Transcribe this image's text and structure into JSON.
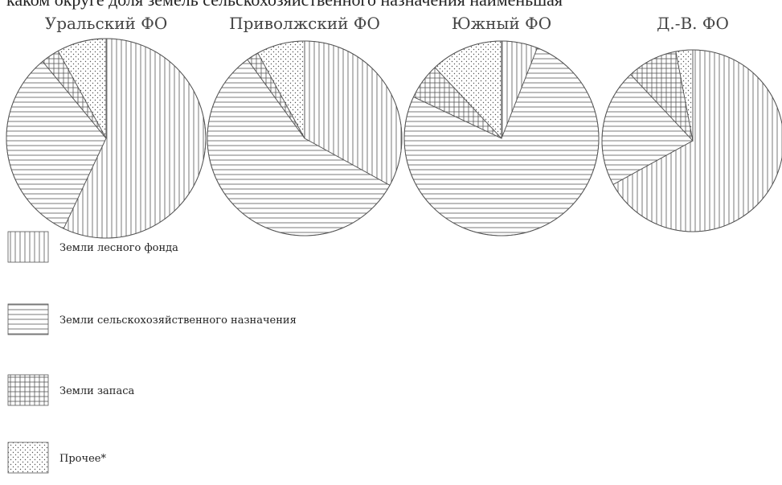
{
  "header_text": "каком округе доля земель сельскохозяйственного назначения наименьшая",
  "chart_data": {
    "type": "pie",
    "categories": [
      "Земли лесного фонда",
      "Земли сельскохозяйственного назначения",
      "Земли запаса",
      "Прочее*"
    ],
    "patterns": [
      "vertical-lines",
      "horizontal-lines",
      "grid",
      "dots"
    ],
    "charts": [
      {
        "title": "Уральский ФО",
        "values": [
          57,
          32,
          3,
          8
        ]
      },
      {
        "title": "Приволжский ФО",
        "values": [
          33,
          57,
          2,
          8
        ]
      },
      {
        "title": "Южный ФО",
        "values": [
          6,
          76,
          6,
          12
        ]
      },
      {
        "title": "Д.-В. ФО",
        "values": [
          67,
          21,
          9,
          3
        ]
      }
    ],
    "legend_position": "bottom-left"
  }
}
